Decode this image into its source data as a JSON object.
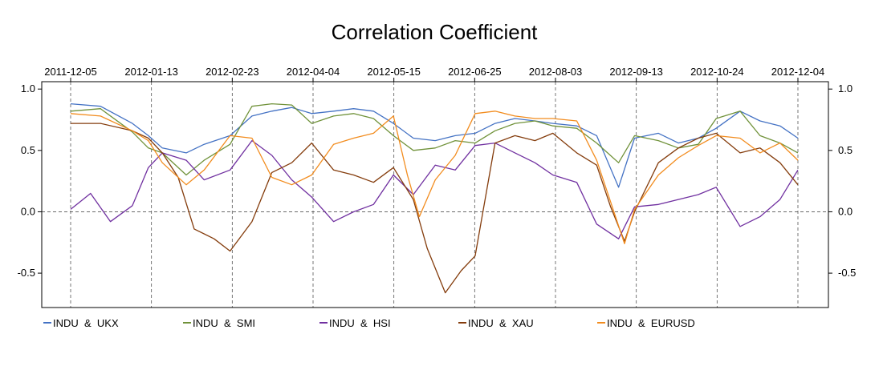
{
  "chart_data": {
    "type": "line",
    "title": "Correlation Coefficient",
    "x_tick_labels": [
      "2011-12-05",
      "2012-01-13",
      "2012-02-23",
      "2012-04-04",
      "2012-05-15",
      "2012-06-25",
      "2012-08-03",
      "2012-09-13",
      "2012-10-24",
      "2012-12-04"
    ],
    "y_ticks": [
      1.0,
      0.5,
      0.0,
      -0.5
    ],
    "y_tick_labels": [
      "1.0",
      "0.5",
      "0.0",
      "-0.5"
    ],
    "ylim": [
      -0.78,
      1.06
    ],
    "xlim": [
      "2011-12-05",
      "2012-12-04"
    ],
    "grid": "dashed vertical lines at date ticks; dashed horizontal line at 0",
    "legend_position": "bottom",
    "series": [
      {
        "name": "INDU  &  UKX",
        "color": "#4472C4",
        "x": [
          "2011-12-05",
          "2011-12-20",
          "2012-01-05",
          "2012-01-13",
          "2012-01-20",
          "2012-02-01",
          "2012-02-10",
          "2012-02-23",
          "2012-03-05",
          "2012-03-15",
          "2012-03-25",
          "2012-04-04",
          "2012-04-15",
          "2012-04-25",
          "2012-05-05",
          "2012-05-15",
          "2012-05-25",
          "2012-06-05",
          "2012-06-15",
          "2012-06-25",
          "2012-07-05",
          "2012-07-15",
          "2012-07-25",
          "2012-08-03",
          "2012-08-15",
          "2012-08-25",
          "2012-09-05",
          "2012-09-13",
          "2012-09-25",
          "2012-10-05",
          "2012-10-15",
          "2012-10-24",
          "2012-11-05",
          "2012-11-15",
          "2012-11-25",
          "2012-12-04"
        ],
        "y": [
          0.88,
          0.86,
          0.72,
          0.62,
          0.52,
          0.48,
          0.55,
          0.62,
          0.78,
          0.82,
          0.85,
          0.8,
          0.82,
          0.84,
          0.82,
          0.72,
          0.6,
          0.58,
          0.62,
          0.64,
          0.72,
          0.76,
          0.74,
          0.72,
          0.7,
          0.62,
          0.2,
          0.6,
          0.64,
          0.56,
          0.6,
          0.68,
          0.82,
          0.74,
          0.7,
          0.6
        ]
      },
      {
        "name": "INDU  &  SMI",
        "color": "#70923A",
        "x": [
          "2011-12-05",
          "2011-12-20",
          "2012-01-05",
          "2012-01-13",
          "2012-01-20",
          "2012-02-01",
          "2012-02-10",
          "2012-02-23",
          "2012-03-05",
          "2012-03-15",
          "2012-03-25",
          "2012-04-04",
          "2012-04-15",
          "2012-04-25",
          "2012-05-05",
          "2012-05-15",
          "2012-05-25",
          "2012-06-05",
          "2012-06-15",
          "2012-06-25",
          "2012-07-05",
          "2012-07-15",
          "2012-07-25",
          "2012-08-03",
          "2012-08-15",
          "2012-08-25",
          "2012-09-05",
          "2012-09-13",
          "2012-09-25",
          "2012-10-05",
          "2012-10-15",
          "2012-10-24",
          "2012-11-05",
          "2012-11-15",
          "2012-11-25",
          "2012-12-04"
        ],
        "y": [
          0.82,
          0.84,
          0.65,
          0.52,
          0.48,
          0.3,
          0.42,
          0.55,
          0.86,
          0.88,
          0.87,
          0.72,
          0.78,
          0.8,
          0.76,
          0.62,
          0.5,
          0.52,
          0.58,
          0.56,
          0.66,
          0.72,
          0.74,
          0.7,
          0.68,
          0.56,
          0.4,
          0.62,
          0.58,
          0.52,
          0.55,
          0.76,
          0.82,
          0.62,
          0.56,
          0.48
        ]
      },
      {
        "name": "INDU  &  HSI",
        "color": "#7030A0",
        "x": [
          "2011-12-05",
          "2011-12-15",
          "2011-12-25",
          "2012-01-05",
          "2012-01-13",
          "2012-01-20",
          "2012-02-01",
          "2012-02-10",
          "2012-02-23",
          "2012-03-05",
          "2012-03-15",
          "2012-03-25",
          "2012-04-04",
          "2012-04-15",
          "2012-04-25",
          "2012-05-05",
          "2012-05-15",
          "2012-05-25",
          "2012-06-05",
          "2012-06-15",
          "2012-06-25",
          "2012-07-05",
          "2012-07-15",
          "2012-07-25",
          "2012-08-03",
          "2012-08-15",
          "2012-08-25",
          "2012-09-05",
          "2012-09-13",
          "2012-09-25",
          "2012-10-05",
          "2012-10-15",
          "2012-10-24",
          "2012-11-05",
          "2012-11-15",
          "2012-11-25",
          "2012-12-04"
        ],
        "y": [
          0.02,
          0.15,
          -0.08,
          0.05,
          0.36,
          0.48,
          0.42,
          0.26,
          0.34,
          0.58,
          0.46,
          0.26,
          0.12,
          -0.08,
          0.0,
          0.06,
          0.3,
          0.14,
          0.38,
          0.34,
          0.54,
          0.56,
          0.48,
          0.4,
          0.3,
          0.24,
          -0.1,
          -0.22,
          0.04,
          0.06,
          0.1,
          0.14,
          0.2,
          -0.12,
          -0.04,
          0.1,
          0.34
        ]
      },
      {
        "name": "INDU  &  XAU",
        "color": "#843C0C",
        "x": [
          "2011-12-05",
          "2011-12-20",
          "2012-01-05",
          "2012-01-13",
          "2012-01-20",
          "2012-01-28",
          "2012-02-05",
          "2012-02-15",
          "2012-02-23",
          "2012-03-05",
          "2012-03-15",
          "2012-03-25",
          "2012-04-04",
          "2012-04-15",
          "2012-04-25",
          "2012-05-05",
          "2012-05-15",
          "2012-05-25",
          "2012-06-01",
          "2012-06-10",
          "2012-06-18",
          "2012-06-25",
          "2012-07-05",
          "2012-07-15",
          "2012-07-25",
          "2012-08-03",
          "2012-08-15",
          "2012-08-25",
          "2012-09-01",
          "2012-09-08",
          "2012-09-13",
          "2012-09-25",
          "2012-10-05",
          "2012-10-15",
          "2012-10-24",
          "2012-11-05",
          "2012-11-15",
          "2012-11-25",
          "2012-12-04"
        ],
        "y": [
          0.72,
          0.72,
          0.66,
          0.6,
          0.48,
          0.28,
          -0.14,
          -0.22,
          -0.32,
          -0.08,
          0.32,
          0.4,
          0.56,
          0.34,
          0.3,
          0.24,
          0.36,
          0.1,
          -0.3,
          -0.66,
          -0.48,
          -0.36,
          0.56,
          0.62,
          0.58,
          0.64,
          0.48,
          0.38,
          0.04,
          -0.24,
          0.0,
          0.4,
          0.52,
          0.6,
          0.64,
          0.48,
          0.52,
          0.4,
          0.22
        ]
      },
      {
        "name": "INDU  &  EURUSD",
        "color": "#F28C1E",
        "x": [
          "2011-12-05",
          "2011-12-20",
          "2012-01-05",
          "2012-01-13",
          "2012-01-20",
          "2012-02-01",
          "2012-02-10",
          "2012-02-23",
          "2012-03-05",
          "2012-03-15",
          "2012-03-25",
          "2012-04-04",
          "2012-04-15",
          "2012-04-25",
          "2012-05-05",
          "2012-05-15",
          "2012-05-22",
          "2012-05-28",
          "2012-06-05",
          "2012-06-15",
          "2012-06-25",
          "2012-07-05",
          "2012-07-15",
          "2012-07-25",
          "2012-08-03",
          "2012-08-15",
          "2012-08-25",
          "2012-09-01",
          "2012-09-08",
          "2012-09-13",
          "2012-09-25",
          "2012-10-05",
          "2012-10-15",
          "2012-10-24",
          "2012-11-05",
          "2012-11-15",
          "2012-11-25",
          "2012-12-04"
        ],
        "y": [
          0.8,
          0.78,
          0.66,
          0.58,
          0.4,
          0.22,
          0.34,
          0.62,
          0.6,
          0.28,
          0.22,
          0.3,
          0.55,
          0.6,
          0.64,
          0.78,
          0.3,
          -0.04,
          0.26,
          0.46,
          0.8,
          0.82,
          0.78,
          0.76,
          0.76,
          0.74,
          0.42,
          0.08,
          -0.26,
          0.02,
          0.3,
          0.44,
          0.54,
          0.62,
          0.6,
          0.48,
          0.56,
          0.42
        ]
      }
    ]
  }
}
